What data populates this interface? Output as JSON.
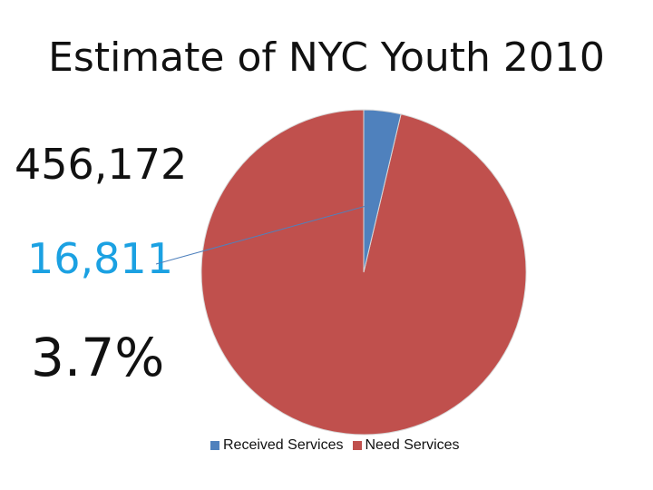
{
  "chart_data": {
    "type": "pie",
    "title": "Estimate of NYC Youth 2010",
    "categories": [
      "Received Services",
      "Need Services"
    ],
    "values": [
      16811,
      439361
    ],
    "colors": [
      "#4f81bd",
      "#c0504d"
    ],
    "legend_position": "bottom"
  },
  "labels": {
    "total": "456,172",
    "received": "16,811",
    "percent": "3.7%"
  }
}
